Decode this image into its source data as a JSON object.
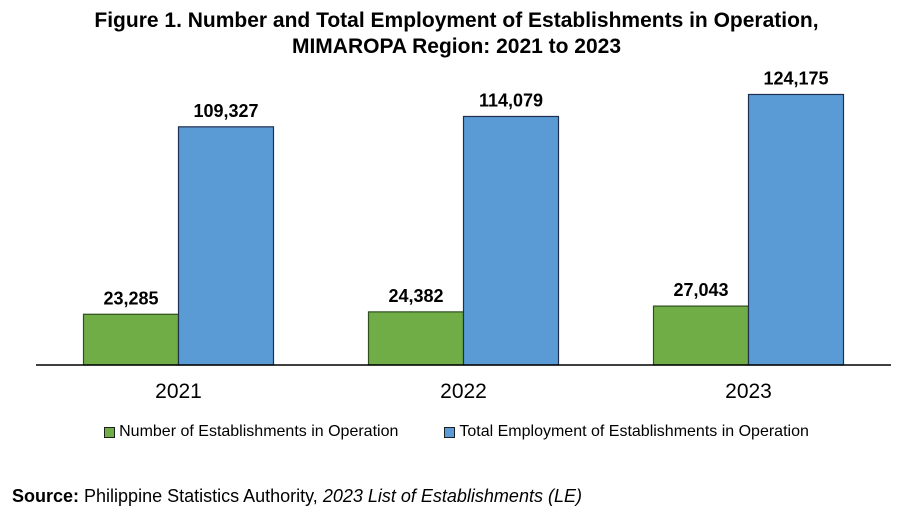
{
  "title_line1": "Figure 1. Number and Total Employment of Establishments in Operation,",
  "title_line2": "MIMAROPA Region: 2021 to 2023",
  "chart_data": {
    "type": "bar",
    "categories": [
      "2021",
      "2022",
      "2023"
    ],
    "series": [
      {
        "name": "Number of Establishments in Operation",
        "values": [
          23285,
          24382,
          27043
        ],
        "labels": [
          "23,285",
          "24,382",
          "27,043"
        ],
        "color": "#70ad47"
      },
      {
        "name": "Total Employment of Establishments in Operation",
        "values": [
          109327,
          114079,
          124175
        ],
        "labels": [
          "109,327",
          "114,079",
          "124,175"
        ],
        "color": "#5b9bd5"
      }
    ],
    "ylim": [
      0,
      140000
    ],
    "grid": false,
    "legend_position": "bottom"
  },
  "source": {
    "label": "Source:",
    "text": " Philippine Statistics Authority, ",
    "italic": "2023 List of Establishments (LE)"
  }
}
